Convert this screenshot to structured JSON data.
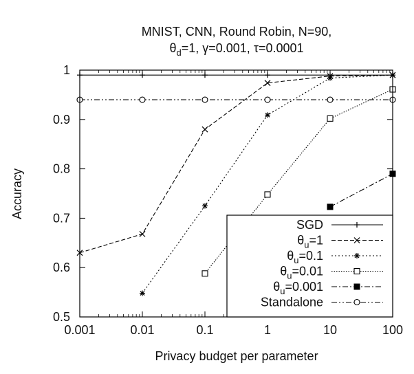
{
  "chart_data": {
    "type": "line",
    "title_line1": "MNIST, CNN, Round Robin, N=90,",
    "title_line2": {
      "theta": "θ",
      "theta_sub": "d",
      "eq1": "=1, ",
      "gamma": "γ",
      "eq2": "=0.001, ",
      "tau": "τ",
      "eq3": "=0.0001"
    },
    "xlabel": "Privacy budget per parameter",
    "ylabel": "Accuracy",
    "x_scale": "log",
    "xlim": [
      0.001,
      100
    ],
    "ylim": [
      0.5,
      1.0
    ],
    "x_ticks": [
      0.001,
      0.01,
      0.1,
      1,
      10,
      100
    ],
    "x_tick_labels": [
      "0.001",
      "0.01",
      "0.1",
      "1",
      "10",
      "100"
    ],
    "y_ticks": [
      0.5,
      0.6,
      0.7,
      0.8,
      0.9,
      1.0
    ],
    "y_tick_labels": [
      "0.5",
      "0.6",
      "0.7",
      "0.8",
      "0.9",
      "1"
    ],
    "grid": false,
    "legend_position": "bottom-right",
    "series": [
      {
        "name": "SGD",
        "legend": {
          "label": "SGD"
        },
        "marker": "plus",
        "dash": "solid",
        "color": "#000000",
        "x": [
          0.001,
          0.01,
          0.1,
          1,
          10,
          100
        ],
        "y": [
          0.99,
          0.99,
          0.99,
          0.99,
          0.99,
          0.99
        ]
      },
      {
        "name": "θu=1",
        "legend": {
          "main": "θ",
          "sub": "u",
          "tail": "=1"
        },
        "marker": "x",
        "dash": "dashed",
        "color": "#000000",
        "x": [
          0.001,
          0.01,
          0.1,
          1,
          10,
          100
        ],
        "y": [
          0.63,
          0.668,
          0.88,
          0.974,
          0.988,
          0.99
        ]
      },
      {
        "name": "θu=0.1",
        "legend": {
          "main": "θ",
          "sub": "u",
          "tail": "=0.1"
        },
        "marker": "star",
        "dash": "dotted",
        "color": "#000000",
        "x": [
          0.01,
          0.1,
          1,
          10,
          100
        ],
        "y": [
          0.548,
          0.725,
          0.909,
          0.984,
          0.99
        ]
      },
      {
        "name": "θu=0.01",
        "legend": {
          "main": "θ",
          "sub": "u",
          "tail": "=0.01"
        },
        "marker": "square-open",
        "dash": "dotted-fine",
        "color": "#000000",
        "x": [
          0.1,
          1,
          10,
          100
        ],
        "y": [
          0.588,
          0.748,
          0.902,
          0.961
        ]
      },
      {
        "name": "θu=0.001",
        "legend": {
          "main": "θ",
          "sub": "u",
          "tail": "=0.001"
        },
        "marker": "square-filled",
        "dash": "dashdot",
        "color": "#000000",
        "x": [
          10,
          100
        ],
        "y": [
          0.723,
          0.79
        ]
      },
      {
        "name": "Standalone",
        "legend": {
          "label": "Standalone"
        },
        "marker": "circle-open",
        "dash": "dashdotdot",
        "color": "#000000",
        "x": [
          0.001,
          0.01,
          0.1,
          1,
          10,
          100
        ],
        "y": [
          0.94,
          0.94,
          0.94,
          0.94,
          0.94,
          0.94
        ]
      }
    ]
  }
}
